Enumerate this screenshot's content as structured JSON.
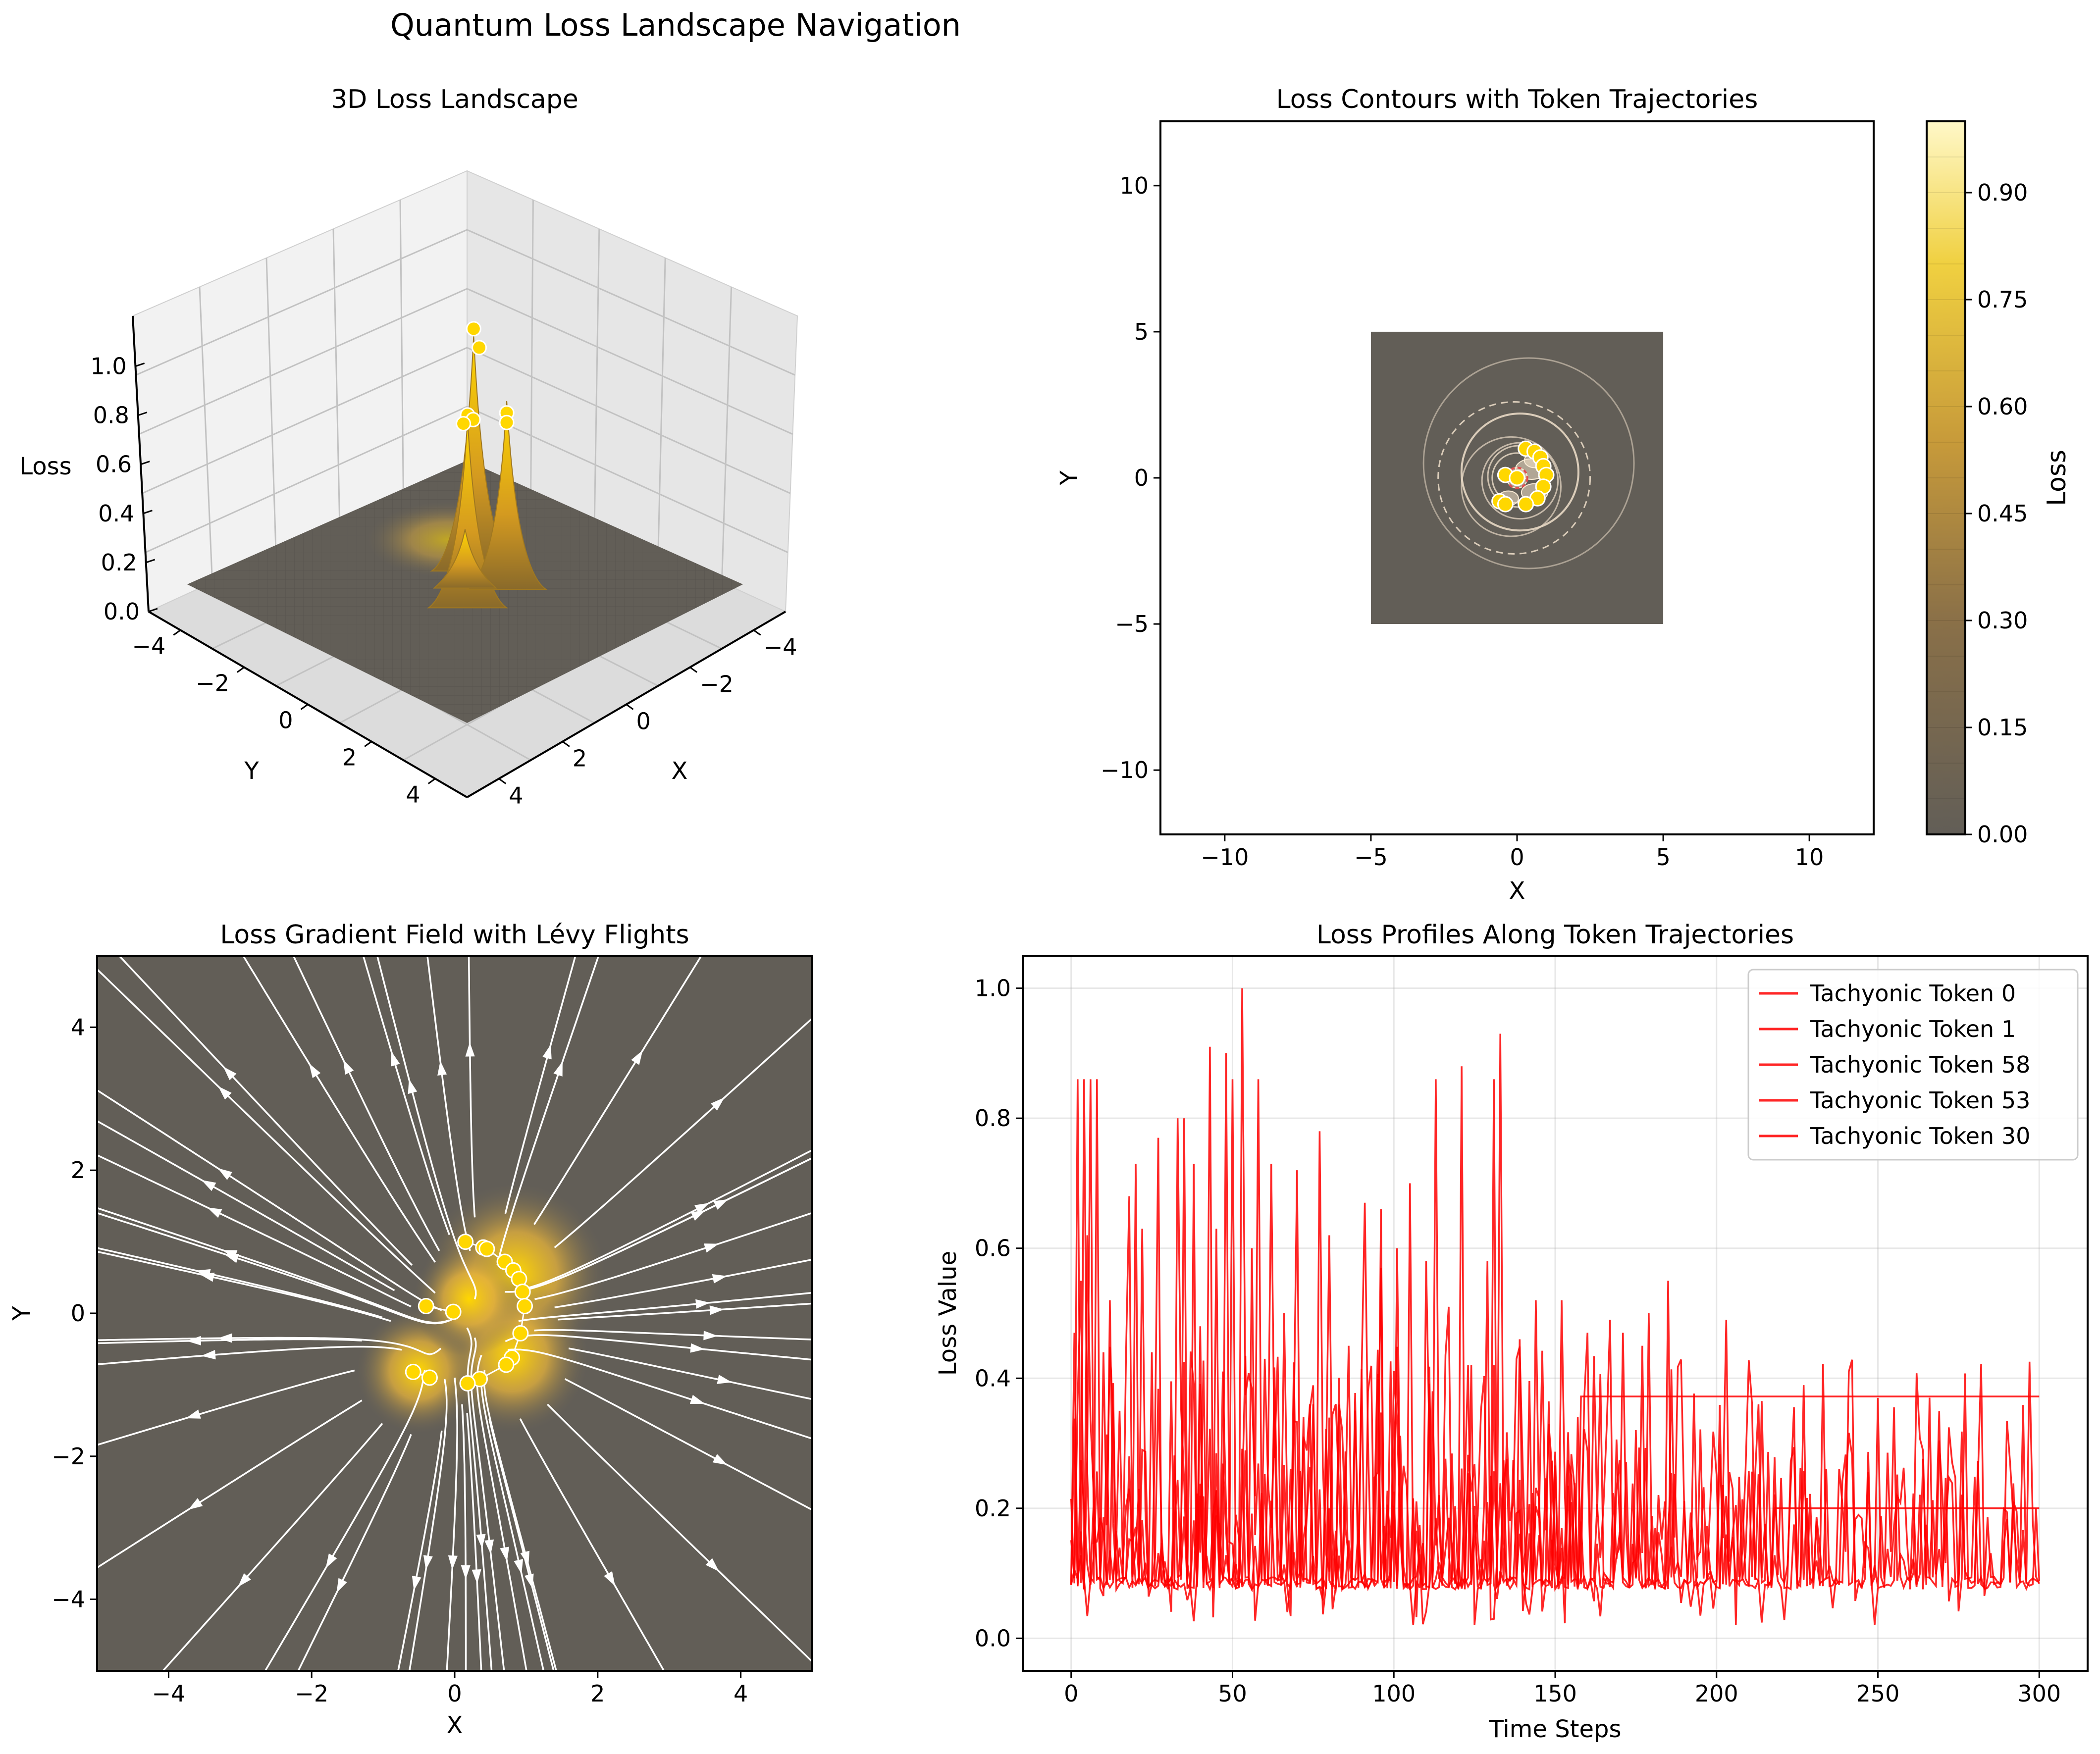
{
  "suptitle": "Quantum Loss Landscape Navigation",
  "colors": {
    "surface_low": "#625e57",
    "surface_high": "#ffd700",
    "token_marker": "#ffd700",
    "loss_line": "#ff0000",
    "streamline": "#ffffff",
    "contour": "#e8d8c4"
  },
  "chart_data": [
    {
      "type": "surface",
      "title": "3D Loss Landscape",
      "xlabel": "X",
      "ylabel": "Y",
      "zlabel": "Loss",
      "x_ticks": [
        "−4",
        "−2",
        "0",
        "2",
        "4"
      ],
      "y_ticks": [
        "−4",
        "−2",
        "0",
        "2",
        "4"
      ],
      "z_ticks": [
        "0.0",
        "0.2",
        "0.4",
        "0.6",
        "0.8",
        "1.0"
      ],
      "xlim": [
        -5,
        5
      ],
      "ylim": [
        -5,
        5
      ],
      "zlim": [
        0,
        1.1
      ],
      "peaks": [
        {
          "x": -0.5,
          "y": -0.8,
          "z": 1.0
        },
        {
          "x": 0.8,
          "y": 0.7,
          "z": 0.8
        },
        {
          "x": 0.8,
          "y": -0.7,
          "z": 0.8
        },
        {
          "x": 0.0,
          "y": 0.0,
          "z": 0.25
        }
      ],
      "tokens": [
        {
          "x": -0.5,
          "y": -0.8,
          "z": 1.03
        },
        {
          "x": -0.4,
          "y": -0.9,
          "z": 0.95
        },
        {
          "x": 0.8,
          "y": 0.7,
          "z": 0.82
        },
        {
          "x": 0.9,
          "y": 0.6,
          "z": 0.8
        },
        {
          "x": 0.7,
          "y": 0.75,
          "z": 0.78
        },
        {
          "x": 0.8,
          "y": -0.7,
          "z": 0.75
        },
        {
          "x": 0.9,
          "y": -0.6,
          "z": 0.72
        }
      ]
    },
    {
      "type": "contour",
      "title": "Loss Contours with Token Trajectories",
      "xlabel": "X",
      "ylabel": "Y",
      "xlim": [
        -12.2,
        12.2
      ],
      "ylim": [
        -12.2,
        12.2
      ],
      "data_extent": [
        -5,
        5
      ],
      "x_ticks": [
        "−10",
        "−5",
        "0",
        "5",
        "10"
      ],
      "y_ticks": [
        "−10",
        "−5",
        "0",
        "5",
        "10"
      ],
      "colorbar_label": "Loss",
      "colorbar_ticks": [
        "0.00",
        "0.15",
        "0.30",
        "0.45",
        "0.60",
        "0.75",
        "0.90"
      ],
      "colorbar_range": [
        0,
        1.0
      ],
      "tokens": [
        {
          "x": -0.4,
          "y": 0.1
        },
        {
          "x": 0.0,
          "y": 0.0
        },
        {
          "x": 0.3,
          "y": 1.0
        },
        {
          "x": 0.6,
          "y": 0.9
        },
        {
          "x": 0.8,
          "y": 0.7
        },
        {
          "x": 0.9,
          "y": 0.4
        },
        {
          "x": 1.0,
          "y": 0.1
        },
        {
          "x": 0.9,
          "y": -0.3
        },
        {
          "x": 0.7,
          "y": -0.7
        },
        {
          "x": 0.3,
          "y": -0.9
        },
        {
          "x": -0.6,
          "y": -0.8
        },
        {
          "x": -0.4,
          "y": -0.9
        }
      ]
    },
    {
      "type": "streamplot",
      "title": "Loss Gradient Field with Lévy Flights",
      "xlabel": "X",
      "ylabel": "Y",
      "xlim": [
        -5,
        5
      ],
      "ylim": [
        -5,
        5
      ],
      "x_ticks": [
        "−4",
        "−2",
        "0",
        "2",
        "4"
      ],
      "y_ticks": [
        "−4",
        "−2",
        "0",
        "2",
        "4"
      ],
      "tokens": [
        {
          "x": 0.15,
          "y": 1.0
        },
        {
          "x": 0.4,
          "y": 0.92
        },
        {
          "x": 0.45,
          "y": 0.9
        },
        {
          "x": 0.7,
          "y": 0.72
        },
        {
          "x": 0.82,
          "y": 0.6
        },
        {
          "x": 0.9,
          "y": 0.48
        },
        {
          "x": 0.95,
          "y": 0.3
        },
        {
          "x": 0.98,
          "y": 0.1
        },
        {
          "x": 0.92,
          "y": -0.28
        },
        {
          "x": 0.8,
          "y": -0.62
        },
        {
          "x": 0.72,
          "y": -0.72
        },
        {
          "x": 0.35,
          "y": -0.92
        },
        {
          "x": 0.18,
          "y": -0.98
        },
        {
          "x": -0.4,
          "y": 0.1
        },
        {
          "x": -0.02,
          "y": 0.02
        },
        {
          "x": -0.58,
          "y": -0.82
        },
        {
          "x": -0.35,
          "y": -0.9
        }
      ]
    },
    {
      "type": "line",
      "title": "Loss Profiles Along Token Trajectories",
      "xlabel": "Time Steps",
      "ylabel": "Loss Value",
      "xlim": [
        -15,
        315
      ],
      "ylim": [
        -0.05,
        1.05
      ],
      "x_ticks": [
        "0",
        "50",
        "100",
        "150",
        "200",
        "250",
        "300"
      ],
      "y_ticks": [
        "0.0",
        "0.2",
        "0.4",
        "0.6",
        "0.8",
        "1.0"
      ],
      "grid": true,
      "legend_position": "top-right",
      "series": [
        {
          "name": "Tachyonic Token 0",
          "plateau_start": 158,
          "plateau": 0.372,
          "peaks": [
            [
              2,
              0.86
            ],
            [
              4,
              0.86
            ],
            [
              8,
              0.86
            ],
            [
              27,
              0.77
            ],
            [
              43,
              0.91
            ],
            [
              53,
              1.0
            ],
            [
              58,
              0.86
            ],
            [
              77,
              0.78
            ],
            [
              96,
              0.66
            ],
            [
              113,
              0.86
            ],
            [
              133,
              0.93
            ],
            [
              159,
              0.63
            ],
            [
              165,
              0.86
            ],
            [
              182,
              0.86
            ]
          ]
        },
        {
          "name": "Tachyonic Token 1",
          "plateau_start": 218,
          "plateau": 0.2,
          "peaks": [
            [
              3,
              0.55
            ],
            [
              12,
              0.52
            ],
            [
              20,
              0.73
            ],
            [
              38,
              0.73
            ],
            [
              50,
              0.86
            ],
            [
              62,
              0.73
            ],
            [
              80,
              0.62
            ],
            [
              101,
              0.6
            ],
            [
              110,
              0.58
            ],
            [
              129,
              0.58
            ],
            [
              152,
              0.52
            ],
            [
              167,
              0.49
            ],
            [
              185,
              0.55
            ],
            [
              203,
              0.49
            ],
            [
              213,
              0.36
            ]
          ]
        },
        {
          "name": "Tachyonic Token 58",
          "plateau_start": 300,
          "plateau": 0.086,
          "peaks": [
            [
              6,
              0.86
            ],
            [
              18,
              0.68
            ],
            [
              33,
              0.8
            ],
            [
              48,
              0.9
            ],
            [
              70,
              0.72
            ],
            [
              91,
              0.67
            ],
            [
              105,
              0.7
            ],
            [
              121,
              0.88
            ],
            [
              131,
              0.86
            ],
            [
              144,
              0.52
            ],
            [
              171,
              0.47
            ],
            [
              179,
              0.5
            ]
          ]
        },
        {
          "name": "Tachyonic Token 53",
          "plateau_start": 300,
          "plateau": 0.088,
          "peaks": [
            [
              5,
              0.62
            ],
            [
              10,
              0.44
            ],
            [
              22,
              0.63
            ],
            [
              35,
              0.8
            ],
            [
              45,
              0.63
            ],
            [
              56,
              0.6
            ],
            [
              66,
              0.5
            ],
            [
              86,
              0.45
            ],
            [
              96,
              0.57
            ],
            [
              117,
              0.51
            ],
            [
              139,
              0.46
            ],
            [
              160,
              0.47
            ],
            [
              177,
              0.45
            ]
          ]
        },
        {
          "name": "Tachyonic Token 30",
          "plateau_start": 300,
          "plateau": 0.084,
          "peaks": [
            [
              1,
              0.47
            ],
            [
              15,
              0.35
            ],
            [
              25,
              0.44
            ],
            [
              40,
              0.48
            ],
            [
              60,
              0.43
            ],
            [
              74,
              0.36
            ],
            [
              92,
              0.38
            ],
            [
              112,
              0.38
            ],
            [
              123,
              0.42
            ],
            [
              148,
              0.33
            ],
            [
              157,
              0.34
            ]
          ]
        }
      ]
    }
  ]
}
